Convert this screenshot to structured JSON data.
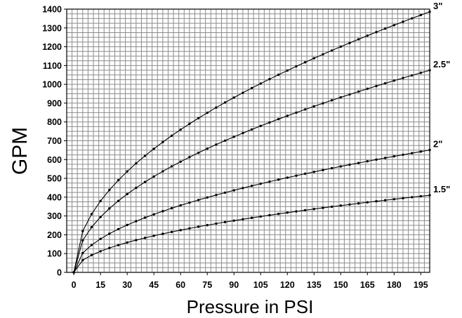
{
  "chart_data": {
    "type": "line",
    "xlabel": "Pressure in PSI",
    "ylabel": "GPM",
    "xlim": [
      -4,
      200
    ],
    "ylim": [
      0,
      1400
    ],
    "x_ticks": [
      0,
      15,
      30,
      45,
      60,
      75,
      90,
      105,
      120,
      135,
      150,
      165,
      180,
      195
    ],
    "y_ticks": [
      0,
      100,
      200,
      300,
      400,
      500,
      600,
      700,
      800,
      900,
      1000,
      1100,
      1200,
      1300,
      1400
    ],
    "grid": true,
    "series": [
      {
        "name": "3\"",
        "k": 98,
        "x_step": 5,
        "x_max": 200
      },
      {
        "name": "2.5\"",
        "k": 76,
        "x_step": 5,
        "x_max": 200
      },
      {
        "name": "2\"",
        "k": 46,
        "x_step": 5,
        "x_max": 200
      },
      {
        "name": "1.5\"",
        "k": 29,
        "x_step": 5,
        "x_max": 200
      }
    ]
  }
}
